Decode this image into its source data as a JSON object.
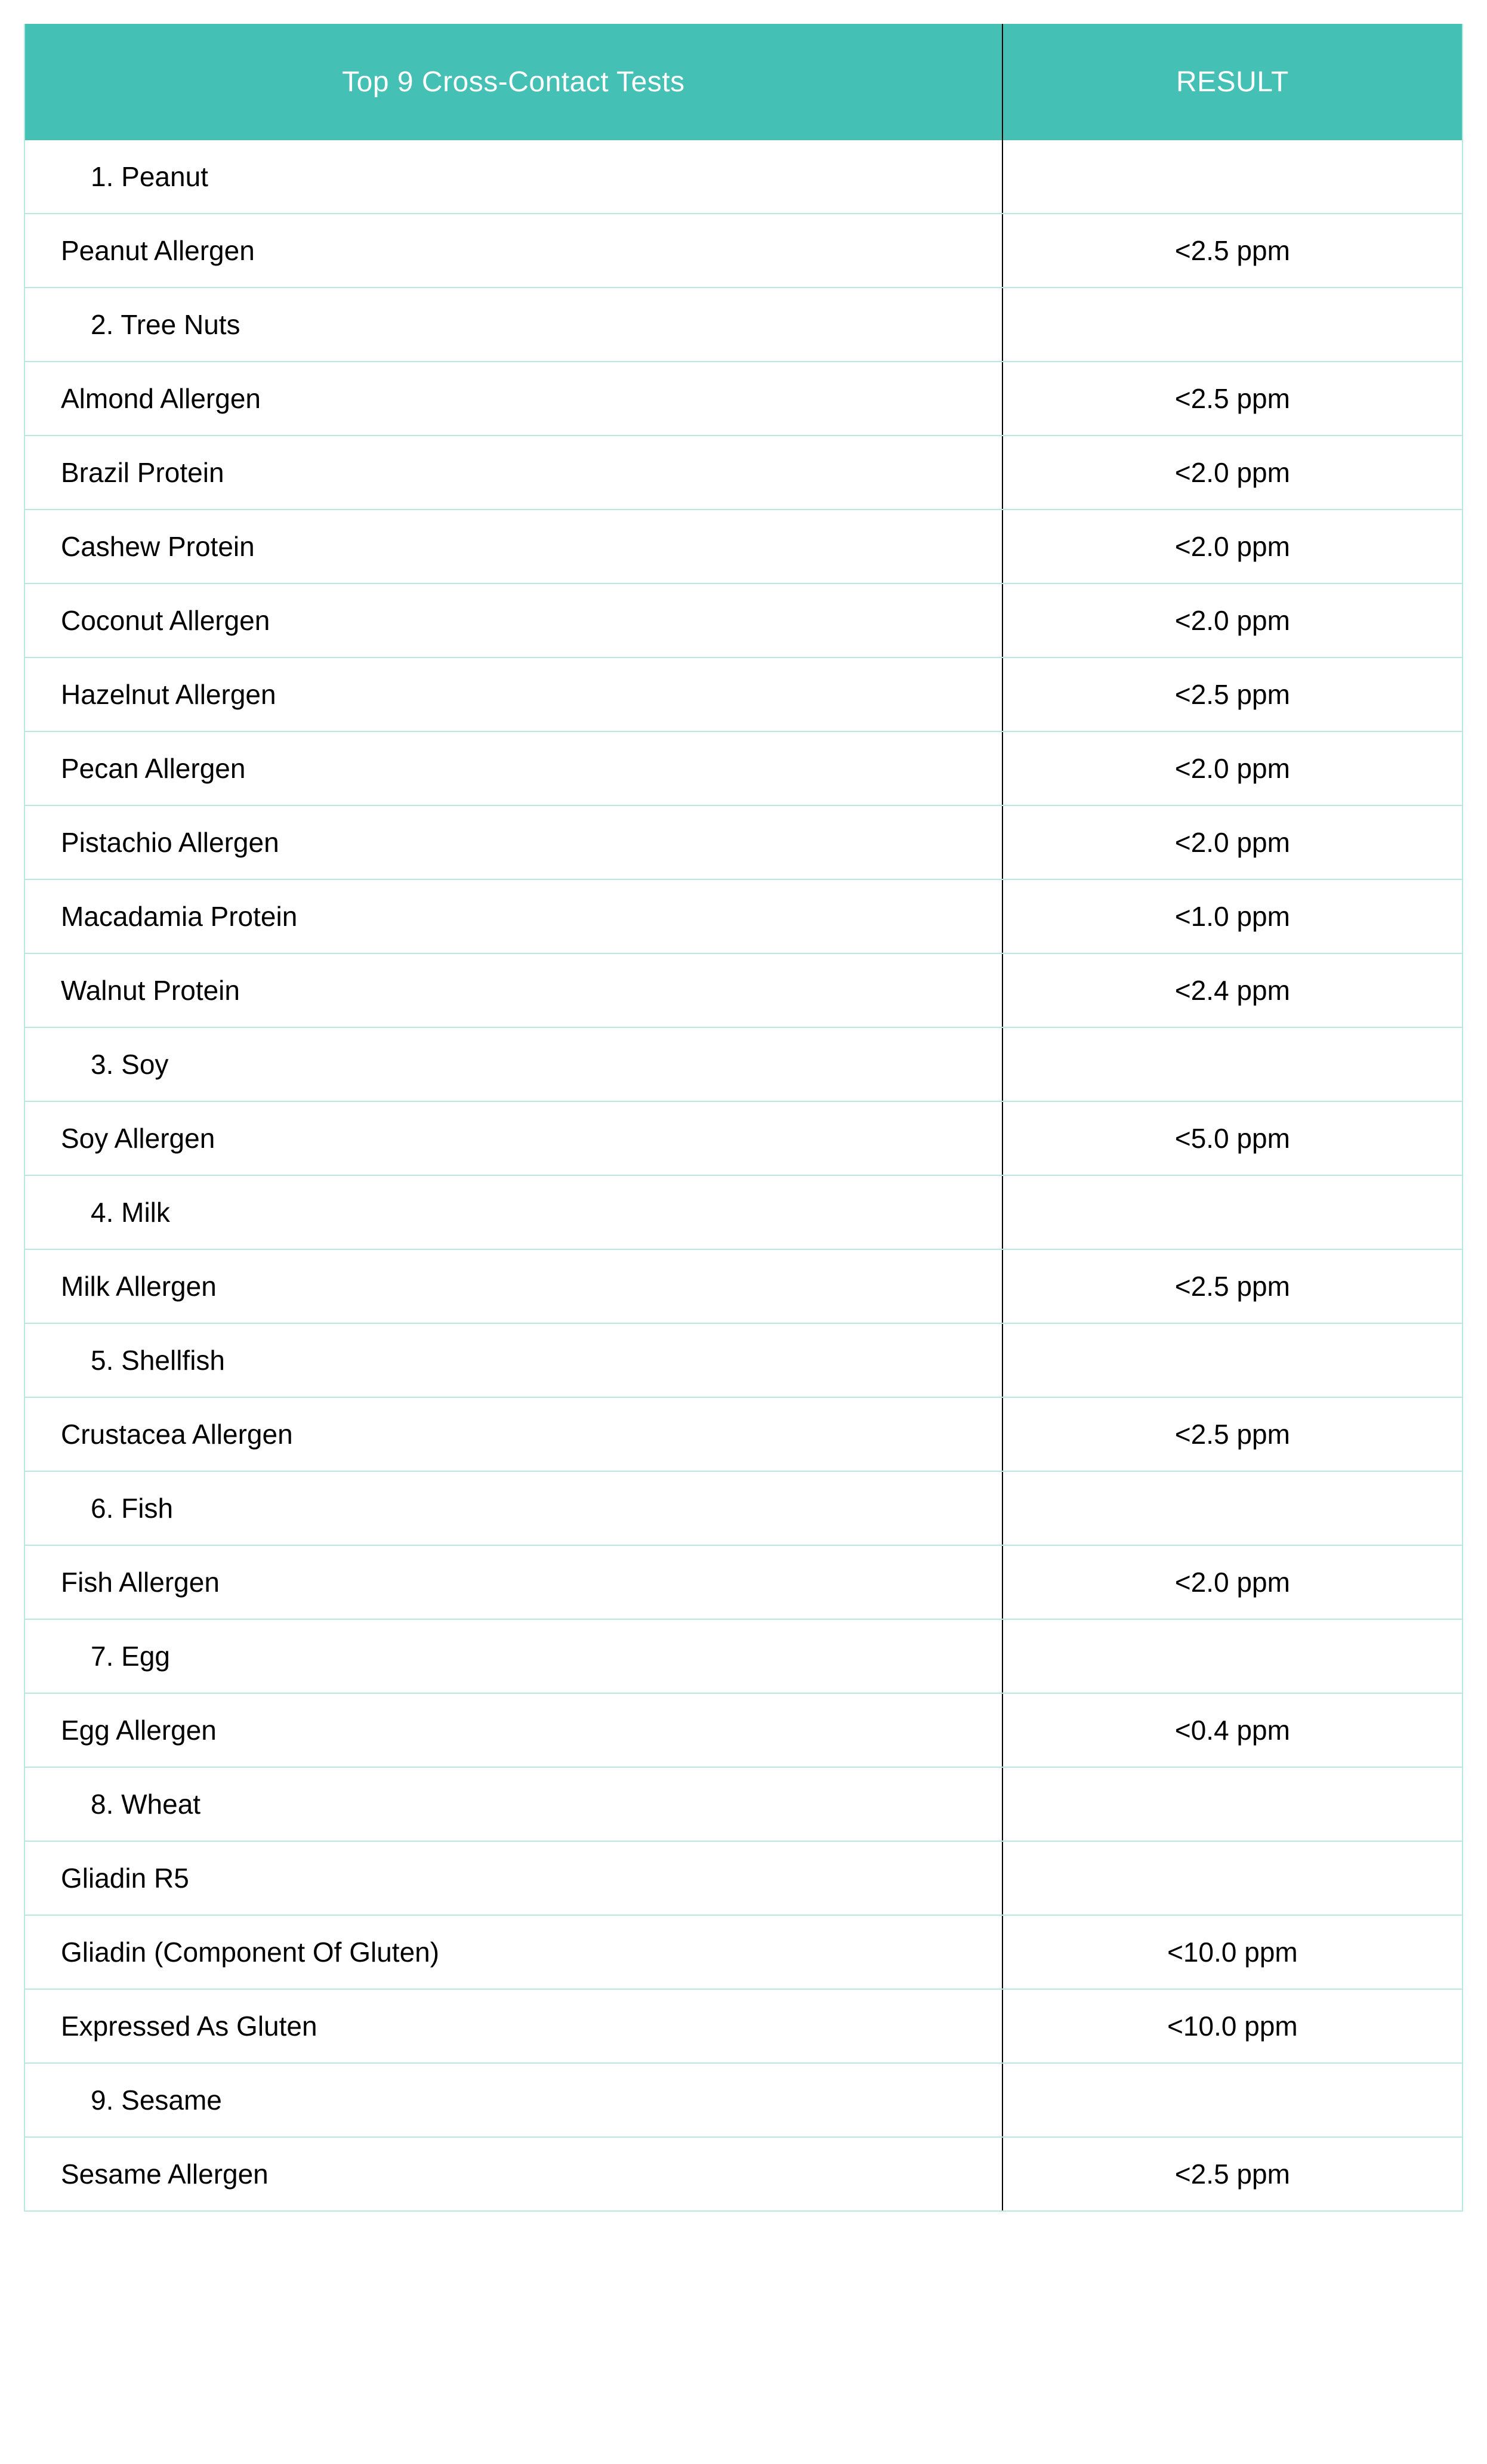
{
  "colors": {
    "header_bg": "#45c0b5",
    "row_border": "#b7e8e2",
    "divider": "#000000",
    "text_header": "#ffffff",
    "text_body": "#000000",
    "bg": "#ffffff"
  },
  "header": {
    "test_col": "Top 9 Cross-Contact Tests",
    "result_col": "RESULT"
  },
  "rows": [
    {
      "kind": "cat",
      "label": "1. Peanut",
      "result": ""
    },
    {
      "kind": "data",
      "label": "Peanut Allergen",
      "result": "<2.5 ppm"
    },
    {
      "kind": "cat",
      "label": "2. Tree Nuts",
      "result": ""
    },
    {
      "kind": "data",
      "label": "Almond Allergen",
      "result": "<2.5 ppm"
    },
    {
      "kind": "data",
      "label": "Brazil Protein",
      "result": "<2.0 ppm"
    },
    {
      "kind": "data",
      "label": "Cashew Protein",
      "result": "<2.0 ppm"
    },
    {
      "kind": "data",
      "label": "Coconut Allergen",
      "result": "<2.0 ppm"
    },
    {
      "kind": "data",
      "label": "Hazelnut Allergen",
      "result": "<2.5 ppm"
    },
    {
      "kind": "data",
      "label": "Pecan Allergen",
      "result": "<2.0 ppm"
    },
    {
      "kind": "data",
      "label": "Pistachio Allergen",
      "result": "<2.0 ppm"
    },
    {
      "kind": "data",
      "label": "Macadamia Protein",
      "result": "<1.0 ppm"
    },
    {
      "kind": "data",
      "label": "Walnut Protein",
      "result": "<2.4 ppm"
    },
    {
      "kind": "cat",
      "label": "3. Soy",
      "result": ""
    },
    {
      "kind": "data",
      "label": "Soy Allergen",
      "result": "<5.0 ppm"
    },
    {
      "kind": "cat",
      "label": "4. Milk",
      "result": ""
    },
    {
      "kind": "data",
      "label": "Milk Allergen",
      "result": "<2.5 ppm"
    },
    {
      "kind": "cat",
      "label": "5. Shellfish",
      "result": ""
    },
    {
      "kind": "data",
      "label": "Crustacea Allergen",
      "result": "<2.5 ppm"
    },
    {
      "kind": "cat",
      "label": "6. Fish",
      "result": ""
    },
    {
      "kind": "data",
      "label": "Fish Allergen",
      "result": "<2.0 ppm"
    },
    {
      "kind": "cat",
      "label": "7. Egg",
      "result": ""
    },
    {
      "kind": "data",
      "label": "Egg Allergen",
      "result": "<0.4 ppm"
    },
    {
      "kind": "cat",
      "label": "8. Wheat",
      "result": ""
    },
    {
      "kind": "sub",
      "label": "Gliadin R5",
      "result": ""
    },
    {
      "kind": "data",
      "label": "Gliadin (Component Of Gluten)",
      "result": "<10.0 ppm"
    },
    {
      "kind": "data",
      "label": "Expressed As Gluten",
      "result": "<10.0 ppm"
    },
    {
      "kind": "cat",
      "label": "9. Sesame",
      "result": ""
    },
    {
      "kind": "data",
      "label": "Sesame Allergen",
      "result": "<2.5 ppm"
    }
  ]
}
